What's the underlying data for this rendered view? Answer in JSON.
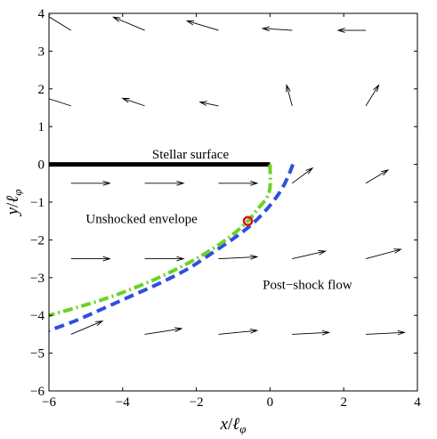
{
  "chart_data": {
    "type": "line",
    "title": "",
    "xlabel": "x/ℓ_φ",
    "ylabel": "y/ℓ_φ",
    "xlabel_parts": {
      "var": "x",
      "sep": "/",
      "sym": "ℓ",
      "sub": "φ"
    },
    "ylabel_parts": {
      "var": "y",
      "sep": "/",
      "sym": "ℓ",
      "sub": "φ"
    },
    "xlim": [
      -6,
      4
    ],
    "ylim": [
      -6,
      4
    ],
    "xticks": [
      -6,
      -4,
      -2,
      0,
      2,
      4
    ],
    "yticks": [
      -6,
      -5,
      -4,
      -3,
      -2,
      -1,
      0,
      1,
      2,
      3,
      4
    ],
    "xtick_labels": [
      "−6",
      "−4",
      "−2",
      "0",
      "2",
      "4"
    ],
    "ytick_labels": [
      "−6",
      "−5",
      "−4",
      "−3",
      "−2",
      "−1",
      "0",
      "1",
      "2",
      "3",
      "4"
    ],
    "grid": false,
    "annotations": [
      {
        "text": "Stellar surface",
        "x": -3.2,
        "y": 0.15
      },
      {
        "text": "Unshocked envelope",
        "x": -5.0,
        "y": -1.55
      },
      {
        "text": "Post−shock flow",
        "x": -0.2,
        "y": -3.3
      }
    ],
    "stellar_surface": {
      "x": [
        -6,
        0
      ],
      "y": [
        0,
        0
      ],
      "color": "#000000"
    },
    "series": [
      {
        "style": "dashed",
        "color": "#2f4fe0",
        "x": [
          0.62,
          0.5,
          0.35,
          0.15,
          -0.1,
          -0.45,
          -0.9,
          -1.5,
          -2.2,
          -3.0,
          -3.8,
          -4.6,
          -5.3,
          -6.0
        ],
        "y": [
          0.0,
          -0.3,
          -0.6,
          -0.9,
          -1.2,
          -1.55,
          -1.9,
          -2.3,
          -2.75,
          -3.15,
          -3.5,
          -3.85,
          -4.15,
          -4.4
        ]
      },
      {
        "style": "dashdot",
        "color": "#6ad323",
        "x": [
          0.0,
          0.0,
          -0.1,
          -0.35,
          -0.6,
          -1.0,
          -1.5,
          -2.1,
          -2.8,
          -3.5,
          -4.3,
          -5.1,
          -6.0
        ],
        "y": [
          0.0,
          -0.6,
          -0.9,
          -1.2,
          -1.5,
          -1.85,
          -2.2,
          -2.55,
          -2.9,
          -3.2,
          -3.5,
          -3.75,
          -4.0
        ]
      }
    ],
    "marker": {
      "x": -0.6,
      "y": -1.5,
      "color": "#dd1111",
      "shape": "circle"
    },
    "quiver": {
      "color": "#000000",
      "arrows": [
        {
          "x": -5.4,
          "y": 3.55,
          "dx": -0.75,
          "dy": 0.45
        },
        {
          "x": -3.4,
          "y": 3.55,
          "dx": -0.85,
          "dy": 0.35
        },
        {
          "x": -1.4,
          "y": 3.55,
          "dx": -0.85,
          "dy": 0.25
        },
        {
          "x": 0.6,
          "y": 3.55,
          "dx": -0.8,
          "dy": 0.05
        },
        {
          "x": 2.6,
          "y": 3.55,
          "dx": -0.75,
          "dy": 0.0
        },
        {
          "x": -5.4,
          "y": 1.55,
          "dx": -0.8,
          "dy": 0.25
        },
        {
          "x": -3.4,
          "y": 1.55,
          "dx": -0.6,
          "dy": 0.2
        },
        {
          "x": -1.4,
          "y": 1.55,
          "dx": -0.5,
          "dy": 0.1
        },
        {
          "x": 0.6,
          "y": 1.55,
          "dx": -0.15,
          "dy": 0.55
        },
        {
          "x": 2.6,
          "y": 1.55,
          "dx": 0.35,
          "dy": 0.55
        },
        {
          "x": -5.4,
          "y": -0.5,
          "dx": 1.05,
          "dy": 0.0
        },
        {
          "x": -3.4,
          "y": -0.5,
          "dx": 1.05,
          "dy": 0.0
        },
        {
          "x": -1.4,
          "y": -0.5,
          "dx": 1.05,
          "dy": 0.0
        },
        {
          "x": 0.6,
          "y": -0.5,
          "dx": 0.55,
          "dy": 0.4
        },
        {
          "x": 2.6,
          "y": -0.5,
          "dx": 0.6,
          "dy": 0.35
        },
        {
          "x": -5.4,
          "y": -2.5,
          "dx": 1.05,
          "dy": 0.0
        },
        {
          "x": -3.4,
          "y": -2.5,
          "dx": 1.05,
          "dy": 0.0
        },
        {
          "x": -1.4,
          "y": -2.5,
          "dx": 1.05,
          "dy": 0.05
        },
        {
          "x": 0.6,
          "y": -2.5,
          "dx": 0.9,
          "dy": 0.2
        },
        {
          "x": 2.6,
          "y": -2.5,
          "dx": 0.95,
          "dy": 0.25
        },
        {
          "x": -5.4,
          "y": -4.5,
          "dx": 0.85,
          "dy": 0.35
        },
        {
          "x": -3.4,
          "y": -4.5,
          "dx": 1.0,
          "dy": 0.15
        },
        {
          "x": -1.4,
          "y": -4.5,
          "dx": 1.05,
          "dy": 0.1
        },
        {
          "x": 0.6,
          "y": -4.5,
          "dx": 1.0,
          "dy": 0.05
        },
        {
          "x": 2.6,
          "y": -4.5,
          "dx": 1.05,
          "dy": 0.05
        }
      ]
    }
  }
}
